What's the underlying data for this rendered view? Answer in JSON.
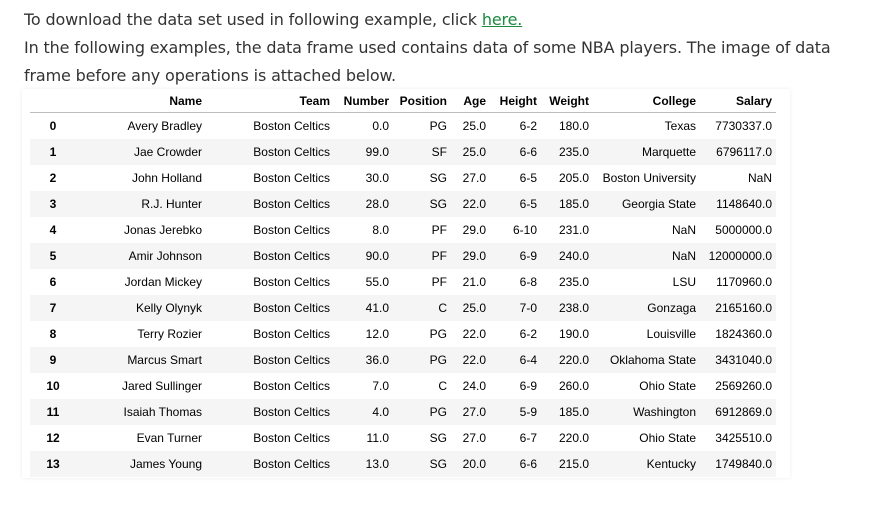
{
  "intro": {
    "line1_text": "To download the data set used in following example, click ",
    "line1_link": "here.",
    "line2_text": "In the following examples, the data frame used contains data of some NBA players. The image of data frame before any operations is attached below."
  },
  "table": {
    "columns": [
      "",
      "Name",
      "Team",
      "Number",
      "Position",
      "Age",
      "Height",
      "Weight",
      "College",
      "Salary"
    ],
    "rows": [
      [
        "0",
        "Avery Bradley",
        "Boston Celtics",
        "0.0",
        "PG",
        "25.0",
        "6-2",
        "180.0",
        "Texas",
        "7730337.0"
      ],
      [
        "1",
        "Jae Crowder",
        "Boston Celtics",
        "99.0",
        "SF",
        "25.0",
        "6-6",
        "235.0",
        "Marquette",
        "6796117.0"
      ],
      [
        "2",
        "John Holland",
        "Boston Celtics",
        "30.0",
        "SG",
        "27.0",
        "6-5",
        "205.0",
        "Boston University",
        "NaN"
      ],
      [
        "3",
        "R.J. Hunter",
        "Boston Celtics",
        "28.0",
        "SG",
        "22.0",
        "6-5",
        "185.0",
        "Georgia State",
        "1148640.0"
      ],
      [
        "4",
        "Jonas Jerebko",
        "Boston Celtics",
        "8.0",
        "PF",
        "29.0",
        "6-10",
        "231.0",
        "NaN",
        "5000000.0"
      ],
      [
        "5",
        "Amir Johnson",
        "Boston Celtics",
        "90.0",
        "PF",
        "29.0",
        "6-9",
        "240.0",
        "NaN",
        "12000000.0"
      ],
      [
        "6",
        "Jordan Mickey",
        "Boston Celtics",
        "55.0",
        "PF",
        "21.0",
        "6-8",
        "235.0",
        "LSU",
        "1170960.0"
      ],
      [
        "7",
        "Kelly Olynyk",
        "Boston Celtics",
        "41.0",
        "C",
        "25.0",
        "7-0",
        "238.0",
        "Gonzaga",
        "2165160.0"
      ],
      [
        "8",
        "Terry Rozier",
        "Boston Celtics",
        "12.0",
        "PG",
        "22.0",
        "6-2",
        "190.0",
        "Louisville",
        "1824360.0"
      ],
      [
        "9",
        "Marcus Smart",
        "Boston Celtics",
        "36.0",
        "PG",
        "22.0",
        "6-4",
        "220.0",
        "Oklahoma State",
        "3431040.0"
      ],
      [
        "10",
        "Jared Sullinger",
        "Boston Celtics",
        "7.0",
        "C",
        "24.0",
        "6-9",
        "260.0",
        "Ohio State",
        "2569260.0"
      ],
      [
        "11",
        "Isaiah Thomas",
        "Boston Celtics",
        "4.0",
        "PG",
        "27.0",
        "5-9",
        "185.0",
        "Washington",
        "6912869.0"
      ],
      [
        "12",
        "Evan Turner",
        "Boston Celtics",
        "11.0",
        "SG",
        "27.0",
        "6-7",
        "220.0",
        "Ohio State",
        "3425510.0"
      ],
      [
        "13",
        "James Young",
        "Boston Celtics",
        "13.0",
        "SG",
        "20.0",
        "6-6",
        "215.0",
        "Kentucky",
        "1749840.0"
      ]
    ]
  },
  "colors": {
    "link": "#1d8a3f",
    "text": "#333333",
    "stripe": "#f5f5f5"
  }
}
